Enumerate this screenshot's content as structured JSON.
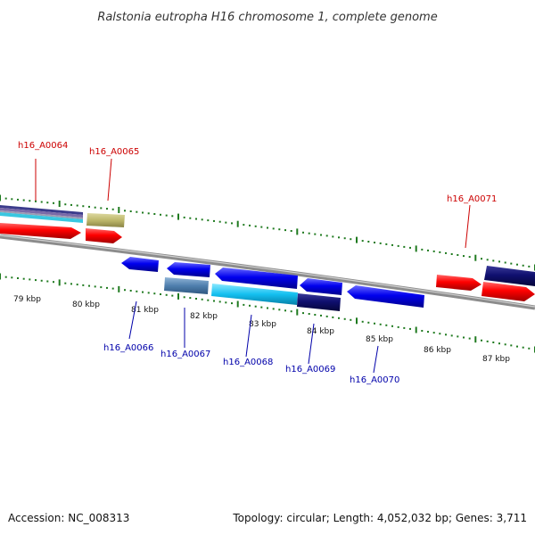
{
  "title": "Ralstonia eutropha H16 chromosome 1, complete genome",
  "footer": {
    "accession": "Accession: NC_008313",
    "summary": "Topology: circular; Length: 4,052,032 bp; Genes: 3,711"
  },
  "colors": {
    "label_plus": "#cc0000",
    "label_minus": "#0000aa",
    "tick": "#1f7a1f",
    "backbone": "#888888"
  },
  "ticks": {
    "labels": [
      "79 kbp",
      "80 kbp",
      "81 kbp",
      "82 kbp",
      "83 kbp",
      "84 kbp",
      "85 kbp",
      "86 kbp",
      "87 kbp"
    ]
  },
  "genes": {
    "h16_A0064": "h16_A0064",
    "h16_A0065": "h16_A0065",
    "h16_A0066": "h16_A0066",
    "h16_A0067": "h16_A0067",
    "h16_A0068": "h16_A0068",
    "h16_A0069": "h16_A0069",
    "h16_A0070": "h16_A0070",
    "h16_A0071": "h16_A0071"
  }
}
